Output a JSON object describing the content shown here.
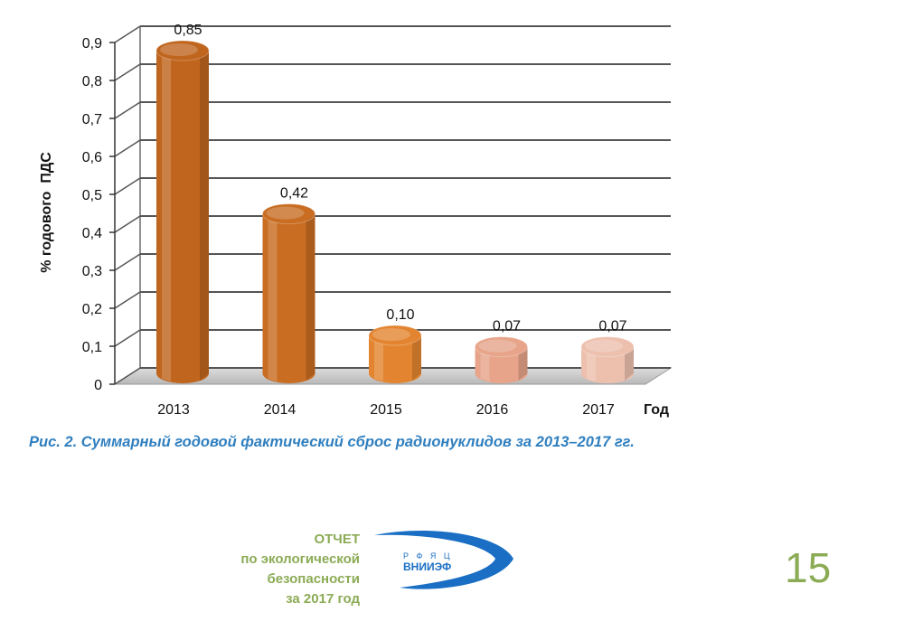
{
  "chart_data": {
    "type": "bar",
    "categories": [
      "2013",
      "2014",
      "2015",
      "2016",
      "2017"
    ],
    "values": [
      0.85,
      0.42,
      0.1,
      0.07,
      0.07
    ],
    "value_labels": [
      "0,85",
      "0,42",
      "0,10",
      "0,07",
      "0,07"
    ],
    "ylabel": "% годового  ПДС",
    "xlabel": "Год",
    "ylim": [
      0,
      0.9
    ],
    "yticks": [
      "0",
      "0,1",
      "0,2",
      "0,3",
      "0,4",
      "0,5",
      "0,6",
      "0,7",
      "0,8",
      "0,9"
    ],
    "grid": true,
    "bar_colors": [
      "#c0651e",
      "#c86d22",
      "#e38530",
      "#e7a48a",
      "#edc0ae"
    ]
  },
  "caption": "Рис. 2. Суммарный годовой фактический сброс радионуклидов за 2013–2017 гг.",
  "footer": {
    "report_lines": [
      "ОТЧЕТ",
      "по экологической",
      "безопасности",
      "за 2017 год"
    ],
    "logo_top": "Р Ф Я Ц",
    "logo_main": "ВНИИЭФ",
    "page_number": "15"
  }
}
